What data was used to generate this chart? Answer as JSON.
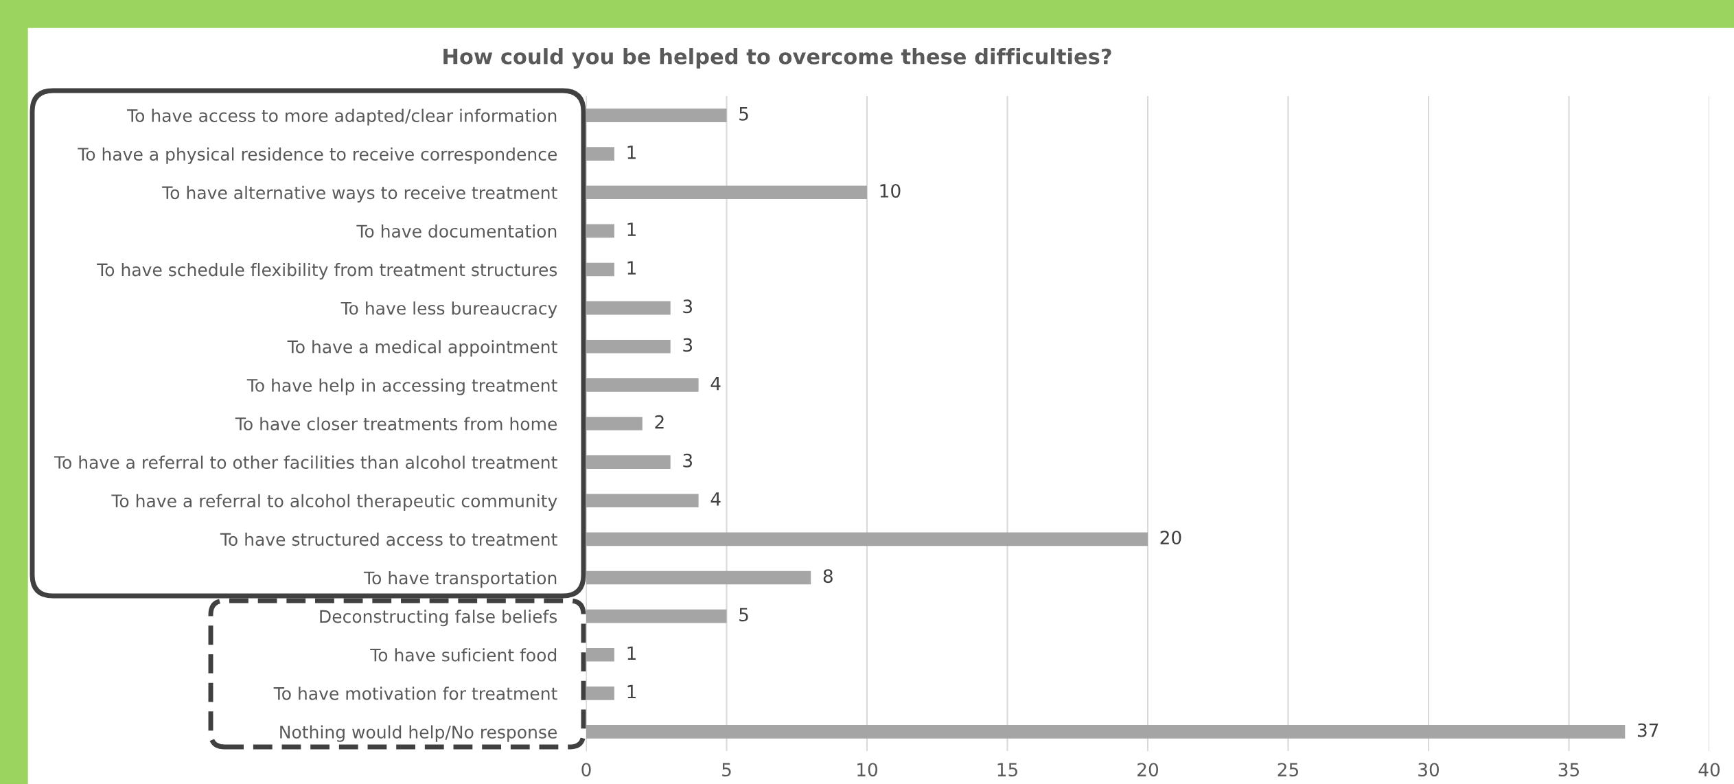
{
  "chart_data": {
    "type": "bar",
    "orientation": "horizontal",
    "title": "How could you be helped to overcome these difficulties?",
    "categories": [
      "To have access to more adapted/clear information",
      "To have a physical residence to receive correspondence",
      "To have alternative ways to receive treatment",
      "To have documentation",
      "To have schedule flexibility from treatment structures",
      "To have less bureaucracy",
      "To have a medical appointment",
      "To have help in accessing treatment",
      "To have closer treatments from home",
      "To have a referral to other facilities than alcohol treatment",
      "To have a referral to alcohol therapeutic community",
      "To have structured access to treatment",
      "To have transportation",
      "Deconstructing false beliefs",
      "To have suficient food",
      "To have motivation for treatment",
      "Nothing would help/No response"
    ],
    "values": [
      5,
      1,
      10,
      1,
      1,
      3,
      3,
      4,
      2,
      3,
      4,
      20,
      8,
      5,
      1,
      1,
      37
    ],
    "color": "#a5a5a5",
    "xlim": [
      0,
      40
    ],
    "xticks": [
      0,
      5,
      10,
      15,
      20,
      25,
      30,
      35,
      40
    ],
    "grid": "x",
    "data_labels": true
  }
}
